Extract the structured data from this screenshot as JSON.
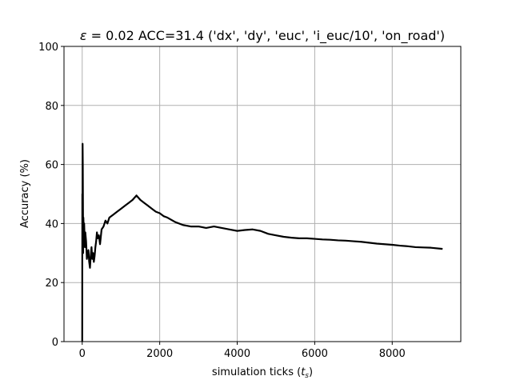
{
  "chart_data": {
    "type": "line",
    "title": "ε = 0.02 ACC=31.4 ('dx', 'dy', 'euc', 'i_euc/10', 'on_road')",
    "title_parts": {
      "symbol": "ε",
      "rest": " = 0.02 ACC=31.4 ('dx', 'dy', 'euc', 'i_euc/10', 'on_road')"
    },
    "xlabel": "simulation ticks (t_s)",
    "xlabel_parts": {
      "main": "simulation ticks (",
      "var": "t",
      "sub": "s",
      "close": ")"
    },
    "ylabel": "Accuracy (%)",
    "xlim": [
      -470,
      9770
    ],
    "ylim": [
      0,
      100
    ],
    "xticks": [
      0,
      2000,
      4000,
      6000,
      8000
    ],
    "xtick_labels": [
      "0",
      "2000",
      "4000",
      "6000",
      "8000"
    ],
    "yticks": [
      0,
      20,
      40,
      60,
      80,
      100
    ],
    "ytick_labels": [
      "0",
      "20",
      "40",
      "60",
      "80",
      "100"
    ],
    "grid": true,
    "line_color": "#000000",
    "series": [
      {
        "x": [
          0,
          3,
          6,
          10,
          15,
          20,
          25,
          30,
          40,
          50,
          60,
          70,
          80,
          100,
          120,
          140,
          160,
          180,
          200,
          220,
          240,
          260,
          280,
          300,
          320,
          340,
          360,
          380,
          400,
          430,
          460,
          500,
          550,
          600,
          650,
          700,
          800,
          900,
          1000,
          1100,
          1200,
          1300,
          1400,
          1500,
          1600,
          1700,
          1800,
          1900,
          2000,
          2100,
          2200,
          2400,
          2600,
          2800,
          3000,
          3200,
          3400,
          3600,
          3800,
          4000,
          4200,
          4400,
          4600,
          4800,
          5000,
          5200,
          5400,
          5600,
          5800,
          6000,
          6200,
          6400,
          6600,
          6800,
          7000,
          7200,
          7400,
          7600,
          7800,
          8000,
          8200,
          8400,
          8600,
          8800,
          9000,
          9300
        ],
        "y": [
          0,
          50,
          33,
          67,
          60,
          45,
          30,
          42,
          38,
          40,
          36,
          32,
          37,
          34,
          28,
          30,
          31,
          27,
          25,
          29,
          32,
          28,
          30,
          27,
          29,
          32,
          34,
          37,
          35,
          36,
          33,
          38,
          39,
          41,
          40,
          42,
          43,
          44,
          45,
          46,
          47,
          48,
          49.5,
          48,
          47,
          46,
          45,
          44,
          43.5,
          42.5,
          42,
          40.5,
          39.5,
          39,
          39,
          38.5,
          39,
          38.5,
          38,
          37.5,
          37.8,
          38,
          37.5,
          36.5,
          36,
          35.5,
          35.2,
          35,
          35,
          34.8,
          34.6,
          34.5,
          34.3,
          34.2,
          34,
          33.8,
          33.5,
          33.2,
          33,
          32.8,
          32.5,
          32.3,
          32,
          31.9,
          31.8,
          31.4
        ]
      }
    ]
  }
}
